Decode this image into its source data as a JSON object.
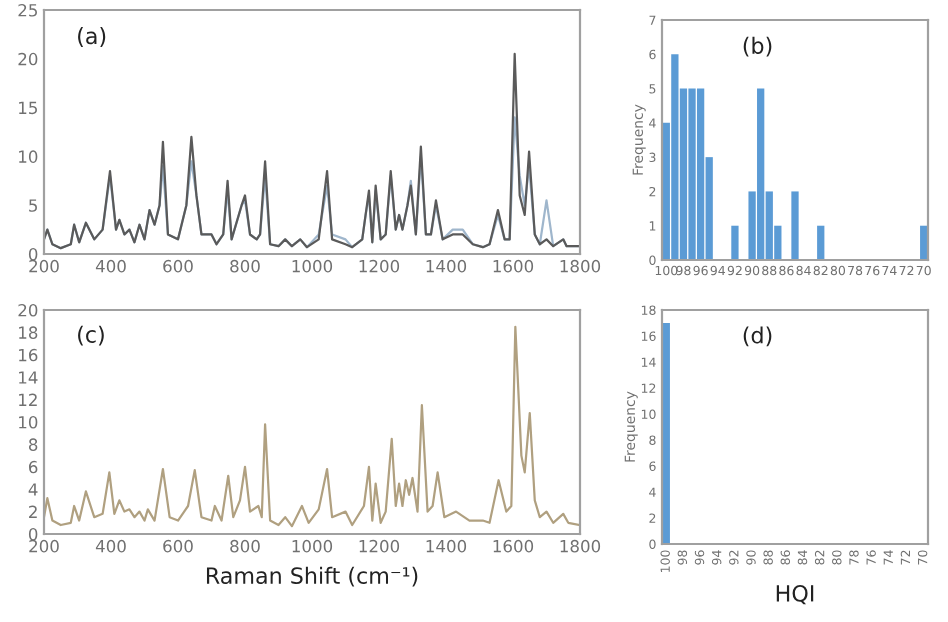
{
  "chart_data": [
    {
      "type": "line",
      "annotations": [
        "(a)"
      ],
      "xlim": [
        200,
        1800
      ],
      "xticks": [
        200,
        400,
        600,
        800,
        1000,
        1200,
        1400,
        1600,
        1800
      ],
      "ylim": [
        0,
        25
      ],
      "yticks": [
        0,
        5,
        10,
        15,
        20,
        25
      ],
      "grid": false,
      "legend": false,
      "series": [
        {
          "color": "#9fb6cc",
          "x": [
            200,
            210,
            225,
            250,
            280,
            290,
            305,
            325,
            350,
            375,
            397,
            415,
            425,
            440,
            455,
            470,
            485,
            500,
            515,
            530,
            545,
            555,
            570,
            600,
            625,
            640,
            655,
            670,
            700,
            715,
            735,
            748,
            760,
            790,
            800,
            815,
            835,
            845,
            860,
            875,
            900,
            920,
            940,
            965,
            985,
            1020,
            1045,
            1060,
            1100,
            1120,
            1150,
            1160,
            1170,
            1180,
            1190,
            1205,
            1220,
            1235,
            1250,
            1260,
            1270,
            1285,
            1295,
            1310,
            1325,
            1340,
            1355,
            1370,
            1390,
            1420,
            1450,
            1480,
            1510,
            1530,
            1555,
            1575,
            1590,
            1605,
            1620,
            1635,
            1648,
            1665,
            1680,
            1700,
            1720,
            1750,
            1760,
            1800
          ],
          "values": [
            1.5,
            2.5,
            1.0,
            0.6,
            1.0,
            3.0,
            1.2,
            3.2,
            1.5,
            2.5,
            8.0,
            2.5,
            3.5,
            2.0,
            2.5,
            1.2,
            3.0,
            1.5,
            4.5,
            3.0,
            5.0,
            9.0,
            2.0,
            1.5,
            5.0,
            9.5,
            6.0,
            2.0,
            2.0,
            1.0,
            2.0,
            6.5,
            1.5,
            5.0,
            5.5,
            2.0,
            1.5,
            2.0,
            8.0,
            1.0,
            0.8,
            1.5,
            0.8,
            1.5,
            0.7,
            2.0,
            7.0,
            2.0,
            1.5,
            0.7,
            1.5,
            4.0,
            6.0,
            1.2,
            6.5,
            1.5,
            2.0,
            8.0,
            2.5,
            4.0,
            2.5,
            5.0,
            7.5,
            2.0,
            10.0,
            2.0,
            2.0,
            5.0,
            1.5,
            2.5,
            2.5,
            1.0,
            0.7,
            1.0,
            4.0,
            1.5,
            1.5,
            14.0,
            8.0,
            5.0,
            9.0,
            2.0,
            1.0,
            5.5,
            0.8,
            1.5,
            0.8,
            0.8
          ]
        },
        {
          "color": "#5a5a5a",
          "x": [
            200,
            210,
            225,
            250,
            280,
            290,
            305,
            325,
            350,
            375,
            397,
            415,
            425,
            440,
            455,
            470,
            485,
            500,
            515,
            530,
            545,
            555,
            570,
            600,
            625,
            640,
            655,
            670,
            700,
            715,
            735,
            748,
            760,
            790,
            800,
            815,
            835,
            845,
            860,
            875,
            900,
            920,
            940,
            965,
            985,
            1020,
            1045,
            1060,
            1100,
            1120,
            1150,
            1160,
            1170,
            1180,
            1190,
            1205,
            1220,
            1235,
            1250,
            1260,
            1270,
            1285,
            1295,
            1310,
            1325,
            1340,
            1355,
            1370,
            1390,
            1420,
            1450,
            1480,
            1510,
            1530,
            1555,
            1575,
            1590,
            1605,
            1620,
            1635,
            1648,
            1665,
            1680,
            1700,
            1720,
            1750,
            1760,
            1800
          ],
          "values": [
            1.5,
            2.5,
            1.0,
            0.6,
            1.0,
            3.0,
            1.2,
            3.2,
            1.5,
            2.5,
            8.5,
            2.5,
            3.5,
            2.0,
            2.5,
            1.2,
            3.0,
            1.5,
            4.5,
            3.0,
            5.0,
            11.5,
            2.0,
            1.5,
            5.0,
            12.0,
            6.0,
            2.0,
            2.0,
            1.0,
            2.0,
            7.5,
            1.5,
            5.0,
            6.0,
            2.0,
            1.5,
            2.0,
            9.5,
            1.0,
            0.8,
            1.5,
            0.8,
            1.5,
            0.7,
            1.5,
            8.5,
            1.5,
            1.0,
            0.7,
            1.5,
            4.0,
            6.5,
            1.2,
            7.0,
            1.5,
            2.0,
            8.5,
            2.5,
            4.0,
            2.5,
            5.0,
            7.0,
            2.0,
            11.0,
            2.0,
            2.0,
            5.5,
            1.5,
            2.0,
            2.0,
            1.0,
            0.7,
            1.0,
            4.5,
            1.5,
            1.5,
            20.5,
            6.0,
            4.0,
            10.5,
            2.0,
            1.0,
            1.5,
            0.8,
            1.5,
            0.8,
            0.8
          ]
        }
      ]
    },
    {
      "type": "bar",
      "annotations": [
        "(b)"
      ],
      "ylabel": "Frequency",
      "ylim": [
        0,
        7
      ],
      "yticks": [
        0,
        1,
        2,
        3,
        4,
        5,
        6,
        7
      ],
      "grid": false,
      "legend": false,
      "categories": [
        "100",
        null,
        "98",
        null,
        "96",
        null,
        "94",
        null,
        "92",
        null,
        "90",
        null,
        "88",
        null,
        "86",
        null,
        "84",
        null,
        "82",
        null,
        "80",
        null,
        "78",
        null,
        "76",
        null,
        "74",
        null,
        "72",
        null,
        "70"
      ],
      "series": [
        {
          "color": "#5b9bd5",
          "values": [
            4,
            6,
            5,
            5,
            5,
            3,
            0,
            0,
            1,
            0,
            2,
            5,
            2,
            1,
            0,
            2,
            0,
            0,
            1,
            0,
            0,
            0,
            0,
            0,
            0,
            0,
            0,
            0,
            0,
            0,
            1
          ]
        }
      ]
    },
    {
      "type": "line",
      "annotations": [
        "(c)"
      ],
      "xlabel": "Raman Shift (cm⁻¹)",
      "xlim": [
        200,
        1800
      ],
      "xticks": [
        200,
        400,
        600,
        800,
        1000,
        1200,
        1400,
        1600,
        1800
      ],
      "ylim": [
        0,
        20
      ],
      "yticks": [
        0,
        2,
        4,
        6,
        8,
        10,
        12,
        14,
        16,
        18,
        20
      ],
      "grid": false,
      "legend": false,
      "series": [
        {
          "color": "#b0a080",
          "x": [
            200,
            210,
            225,
            250,
            280,
            290,
            305,
            325,
            350,
            375,
            395,
            410,
            425,
            440,
            455,
            470,
            485,
            500,
            510,
            530,
            555,
            575,
            600,
            630,
            650,
            670,
            700,
            710,
            730,
            750,
            765,
            785,
            800,
            815,
            840,
            850,
            860,
            875,
            900,
            920,
            940,
            970,
            990,
            1020,
            1045,
            1060,
            1100,
            1120,
            1155,
            1170,
            1180,
            1190,
            1205,
            1220,
            1238,
            1250,
            1260,
            1270,
            1280,
            1290,
            1300,
            1315,
            1328,
            1345,
            1360,
            1375,
            1395,
            1430,
            1470,
            1510,
            1530,
            1557,
            1580,
            1595,
            1607,
            1625,
            1635,
            1650,
            1665,
            1680,
            1700,
            1720,
            1750,
            1765,
            1800
          ],
          "values": [
            1.5,
            3.2,
            1.2,
            0.8,
            1.0,
            2.5,
            1.2,
            3.8,
            1.5,
            1.8,
            5.5,
            1.8,
            3.0,
            2.0,
            2.2,
            1.5,
            2.0,
            1.2,
            2.2,
            1.2,
            5.8,
            1.5,
            1.2,
            2.5,
            5.7,
            1.5,
            1.2,
            2.5,
            1.2,
            5.2,
            1.5,
            3.0,
            6.0,
            2.0,
            2.5,
            1.5,
            9.8,
            1.2,
            0.8,
            1.5,
            0.7,
            2.5,
            1.0,
            2.2,
            5.8,
            1.5,
            2.0,
            0.8,
            2.5,
            6.0,
            1.2,
            4.5,
            1.0,
            2.0,
            8.5,
            2.5,
            4.5,
            2.5,
            4.8,
            3.5,
            5.0,
            2.0,
            11.5,
            2.0,
            2.5,
            5.5,
            1.5,
            2.0,
            1.2,
            1.2,
            1.0,
            4.8,
            2.0,
            2.5,
            18.5,
            7.0,
            5.5,
            10.8,
            3.0,
            1.5,
            2.0,
            1.0,
            1.8,
            1.0,
            0.8
          ]
        }
      ]
    },
    {
      "type": "bar",
      "annotations": [
        "(d)"
      ],
      "xlabel": "HQI",
      "ylabel": "Frequency",
      "ylim": [
        0,
        18
      ],
      "yticks": [
        0,
        2,
        4,
        6,
        8,
        10,
        12,
        14,
        16,
        18
      ],
      "grid": false,
      "legend": false,
      "categories": [
        "100",
        null,
        "98",
        null,
        "96",
        null,
        "94",
        null,
        "92",
        null,
        "90",
        null,
        "88",
        null,
        "86",
        null,
        "84",
        null,
        "82",
        null,
        "80",
        null,
        "78",
        null,
        "76",
        null,
        "74",
        null,
        "72",
        null,
        "70"
      ],
      "series": [
        {
          "color": "#5b9bd5",
          "values": [
            17,
            0,
            0,
            0,
            0,
            0,
            0,
            0,
            0,
            0,
            0,
            0,
            0,
            0,
            0,
            0,
            0,
            0,
            0,
            0,
            0,
            0,
            0,
            0,
            0,
            0,
            0,
            0,
            0,
            0,
            0
          ]
        }
      ]
    }
  ]
}
